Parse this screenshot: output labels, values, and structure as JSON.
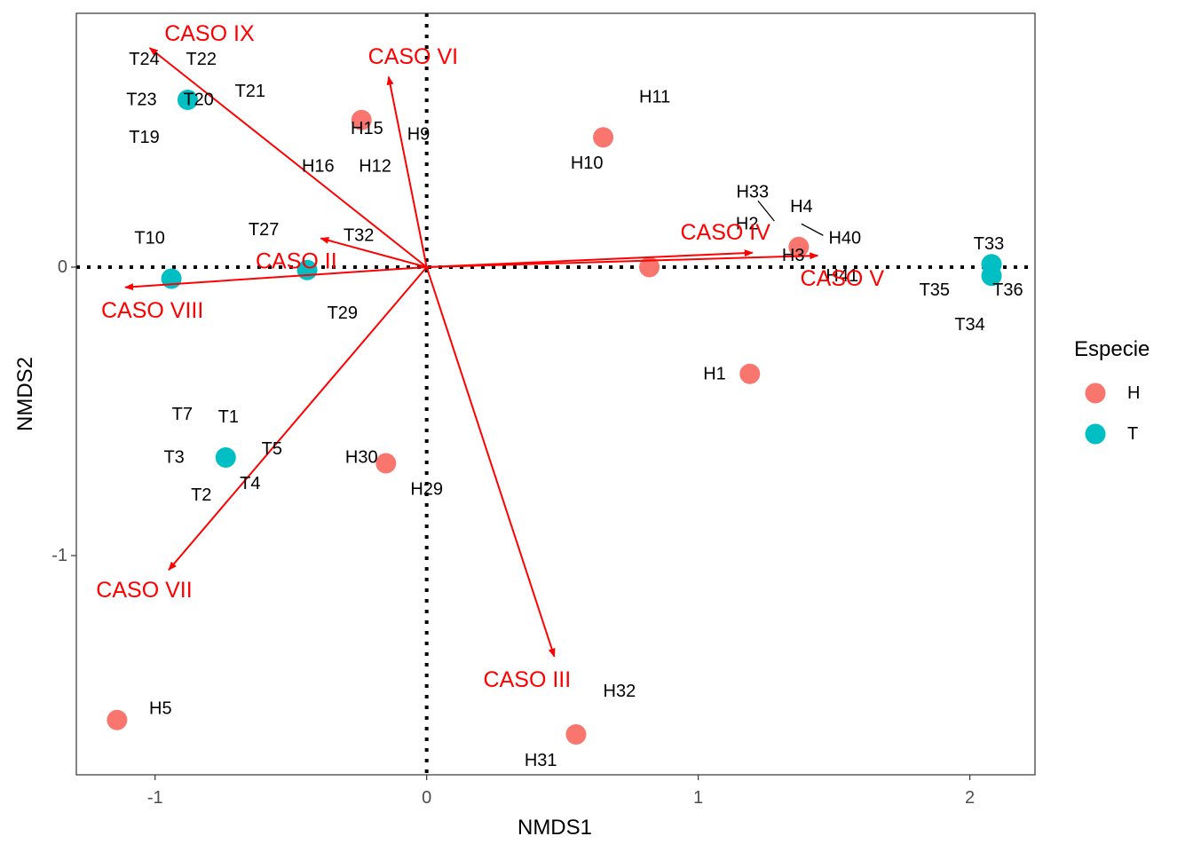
{
  "chart_data": {
    "type": "scatter",
    "xlabel": "NMDS1",
    "ylabel": "NMDS2",
    "xlim": [
      -1.29,
      2.24
    ],
    "ylim": [
      -1.76,
      0.88
    ],
    "xticks": [
      -1,
      0,
      1,
      2
    ],
    "yticks": [
      -1,
      0
    ],
    "reference_lines": {
      "x": 0,
      "y": 0,
      "style": "dotted"
    },
    "grid": false,
    "legend": {
      "title": "Especie",
      "position": "right",
      "entries": [
        {
          "label": "H",
          "color": "#F8766D"
        },
        {
          "label": "T",
          "color": "#00BFC4"
        }
      ]
    },
    "series": [
      {
        "name": "H",
        "color": "#F8766D",
        "points": [
          {
            "x": -0.24,
            "y": 0.51
          },
          {
            "x": 0.65,
            "y": 0.45
          },
          {
            "x": 1.37,
            "y": 0.07
          },
          {
            "x": 0.82,
            "y": 0.0
          },
          {
            "x": 1.19,
            "y": -0.37
          },
          {
            "x": -0.15,
            "y": -0.68
          },
          {
            "x": 0.55,
            "y": -1.62
          },
          {
            "x": -1.14,
            "y": -1.57
          }
        ]
      },
      {
        "name": "T",
        "color": "#00BFC4",
        "points": [
          {
            "x": -0.88,
            "y": 0.58
          },
          {
            "x": -0.94,
            "y": -0.04
          },
          {
            "x": -0.44,
            "y": -0.01
          },
          {
            "x": -0.74,
            "y": -0.66
          },
          {
            "x": 2.08,
            "y": 0.01
          },
          {
            "x": 2.08,
            "y": -0.03
          }
        ]
      }
    ],
    "point_labels": [
      {
        "text": "T24",
        "x": -1.04,
        "y": 0.72
      },
      {
        "text": "T22",
        "x": -0.83,
        "y": 0.72
      },
      {
        "text": "T20",
        "x": -0.84,
        "y": 0.58
      },
      {
        "text": "T23",
        "x": -1.05,
        "y": 0.58
      },
      {
        "text": "T21",
        "x": -0.65,
        "y": 0.61
      },
      {
        "text": "T19",
        "x": -1.04,
        "y": 0.45
      },
      {
        "text": "H16",
        "x": -0.4,
        "y": 0.35
      },
      {
        "text": "H12",
        "x": -0.19,
        "y": 0.35
      },
      {
        "text": "H15",
        "x": -0.22,
        "y": 0.48
      },
      {
        "text": "H9",
        "x": -0.03,
        "y": 0.46
      },
      {
        "text": "H11",
        "x": 0.84,
        "y": 0.59
      },
      {
        "text": "H10",
        "x": 0.59,
        "y": 0.36
      },
      {
        "text": "H33",
        "x": 1.2,
        "y": 0.26
      },
      {
        "text": "H4",
        "x": 1.38,
        "y": 0.21
      },
      {
        "text": "H2",
        "x": 1.18,
        "y": 0.15
      },
      {
        "text": "H40",
        "x": 1.54,
        "y": 0.1
      },
      {
        "text": "H3",
        "x": 1.35,
        "y": 0.04
      },
      {
        "text": "H41",
        "x": 1.53,
        "y": -0.03
      },
      {
        "text": "T33",
        "x": 2.07,
        "y": 0.08
      },
      {
        "text": "T35",
        "x": 1.87,
        "y": -0.08
      },
      {
        "text": "T36",
        "x": 2.14,
        "y": -0.08
      },
      {
        "text": "T34",
        "x": 2.0,
        "y": -0.2
      },
      {
        "text": "T10",
        "x": -1.02,
        "y": 0.1
      },
      {
        "text": "T27",
        "x": -0.6,
        "y": 0.13
      },
      {
        "text": "T32",
        "x": -0.25,
        "y": 0.11
      },
      {
        "text": "T29",
        "x": -0.31,
        "y": -0.16
      },
      {
        "text": "H1",
        "x": 1.06,
        "y": -0.37
      },
      {
        "text": "T7",
        "x": -0.9,
        "y": -0.51
      },
      {
        "text": "T1",
        "x": -0.73,
        "y": -0.52
      },
      {
        "text": "T3",
        "x": -0.93,
        "y": -0.66
      },
      {
        "text": "T5",
        "x": -0.57,
        "y": -0.63
      },
      {
        "text": "T4",
        "x": -0.65,
        "y": -0.75
      },
      {
        "text": "T2",
        "x": -0.83,
        "y": -0.79
      },
      {
        "text": "H30",
        "x": -0.24,
        "y": -0.66
      },
      {
        "text": "H29",
        "x": 0.0,
        "y": -0.77
      },
      {
        "text": "H32",
        "x": 0.71,
        "y": -1.47
      },
      {
        "text": "H31",
        "x": 0.42,
        "y": -1.71
      },
      {
        "text": "H5",
        "x": -0.98,
        "y": -1.53
      }
    ],
    "leader_lines": [
      {
        "x1": 1.22,
        "y1": 0.23,
        "x2": 1.28,
        "y2": 0.16
      },
      {
        "x1": 1.38,
        "y1": 0.15,
        "x2": 1.46,
        "y2": 0.11
      }
    ],
    "vectors": [
      {
        "label": "CASO IX",
        "x": -1.02,
        "y": 0.76,
        "label_x": -0.8,
        "label_y": 0.81
      },
      {
        "label": "CASO VI",
        "x": -0.14,
        "y": 0.66,
        "label_x": -0.05,
        "label_y": 0.73
      },
      {
        "label": "CASO II",
        "x": -0.39,
        "y": 0.1,
        "label_x": -0.48,
        "label_y": 0.02
      },
      {
        "label": "CASO IV",
        "x": 1.2,
        "y": 0.05,
        "label_x": 1.1,
        "label_y": 0.12
      },
      {
        "label": "CASO V",
        "x": 1.44,
        "y": 0.04,
        "label_x": 1.53,
        "label_y": -0.04
      },
      {
        "label": "CASO VIII",
        "x": -1.11,
        "y": -0.07,
        "label_x": -1.01,
        "label_y": -0.15
      },
      {
        "label": "CASO VII",
        "x": -0.95,
        "y": -1.05,
        "label_x": -1.04,
        "label_y": -1.12
      },
      {
        "label": "CASO III",
        "x": 0.47,
        "y": -1.35,
        "label_x": 0.37,
        "label_y": -1.43
      }
    ],
    "vector_color": "#ff0000"
  }
}
